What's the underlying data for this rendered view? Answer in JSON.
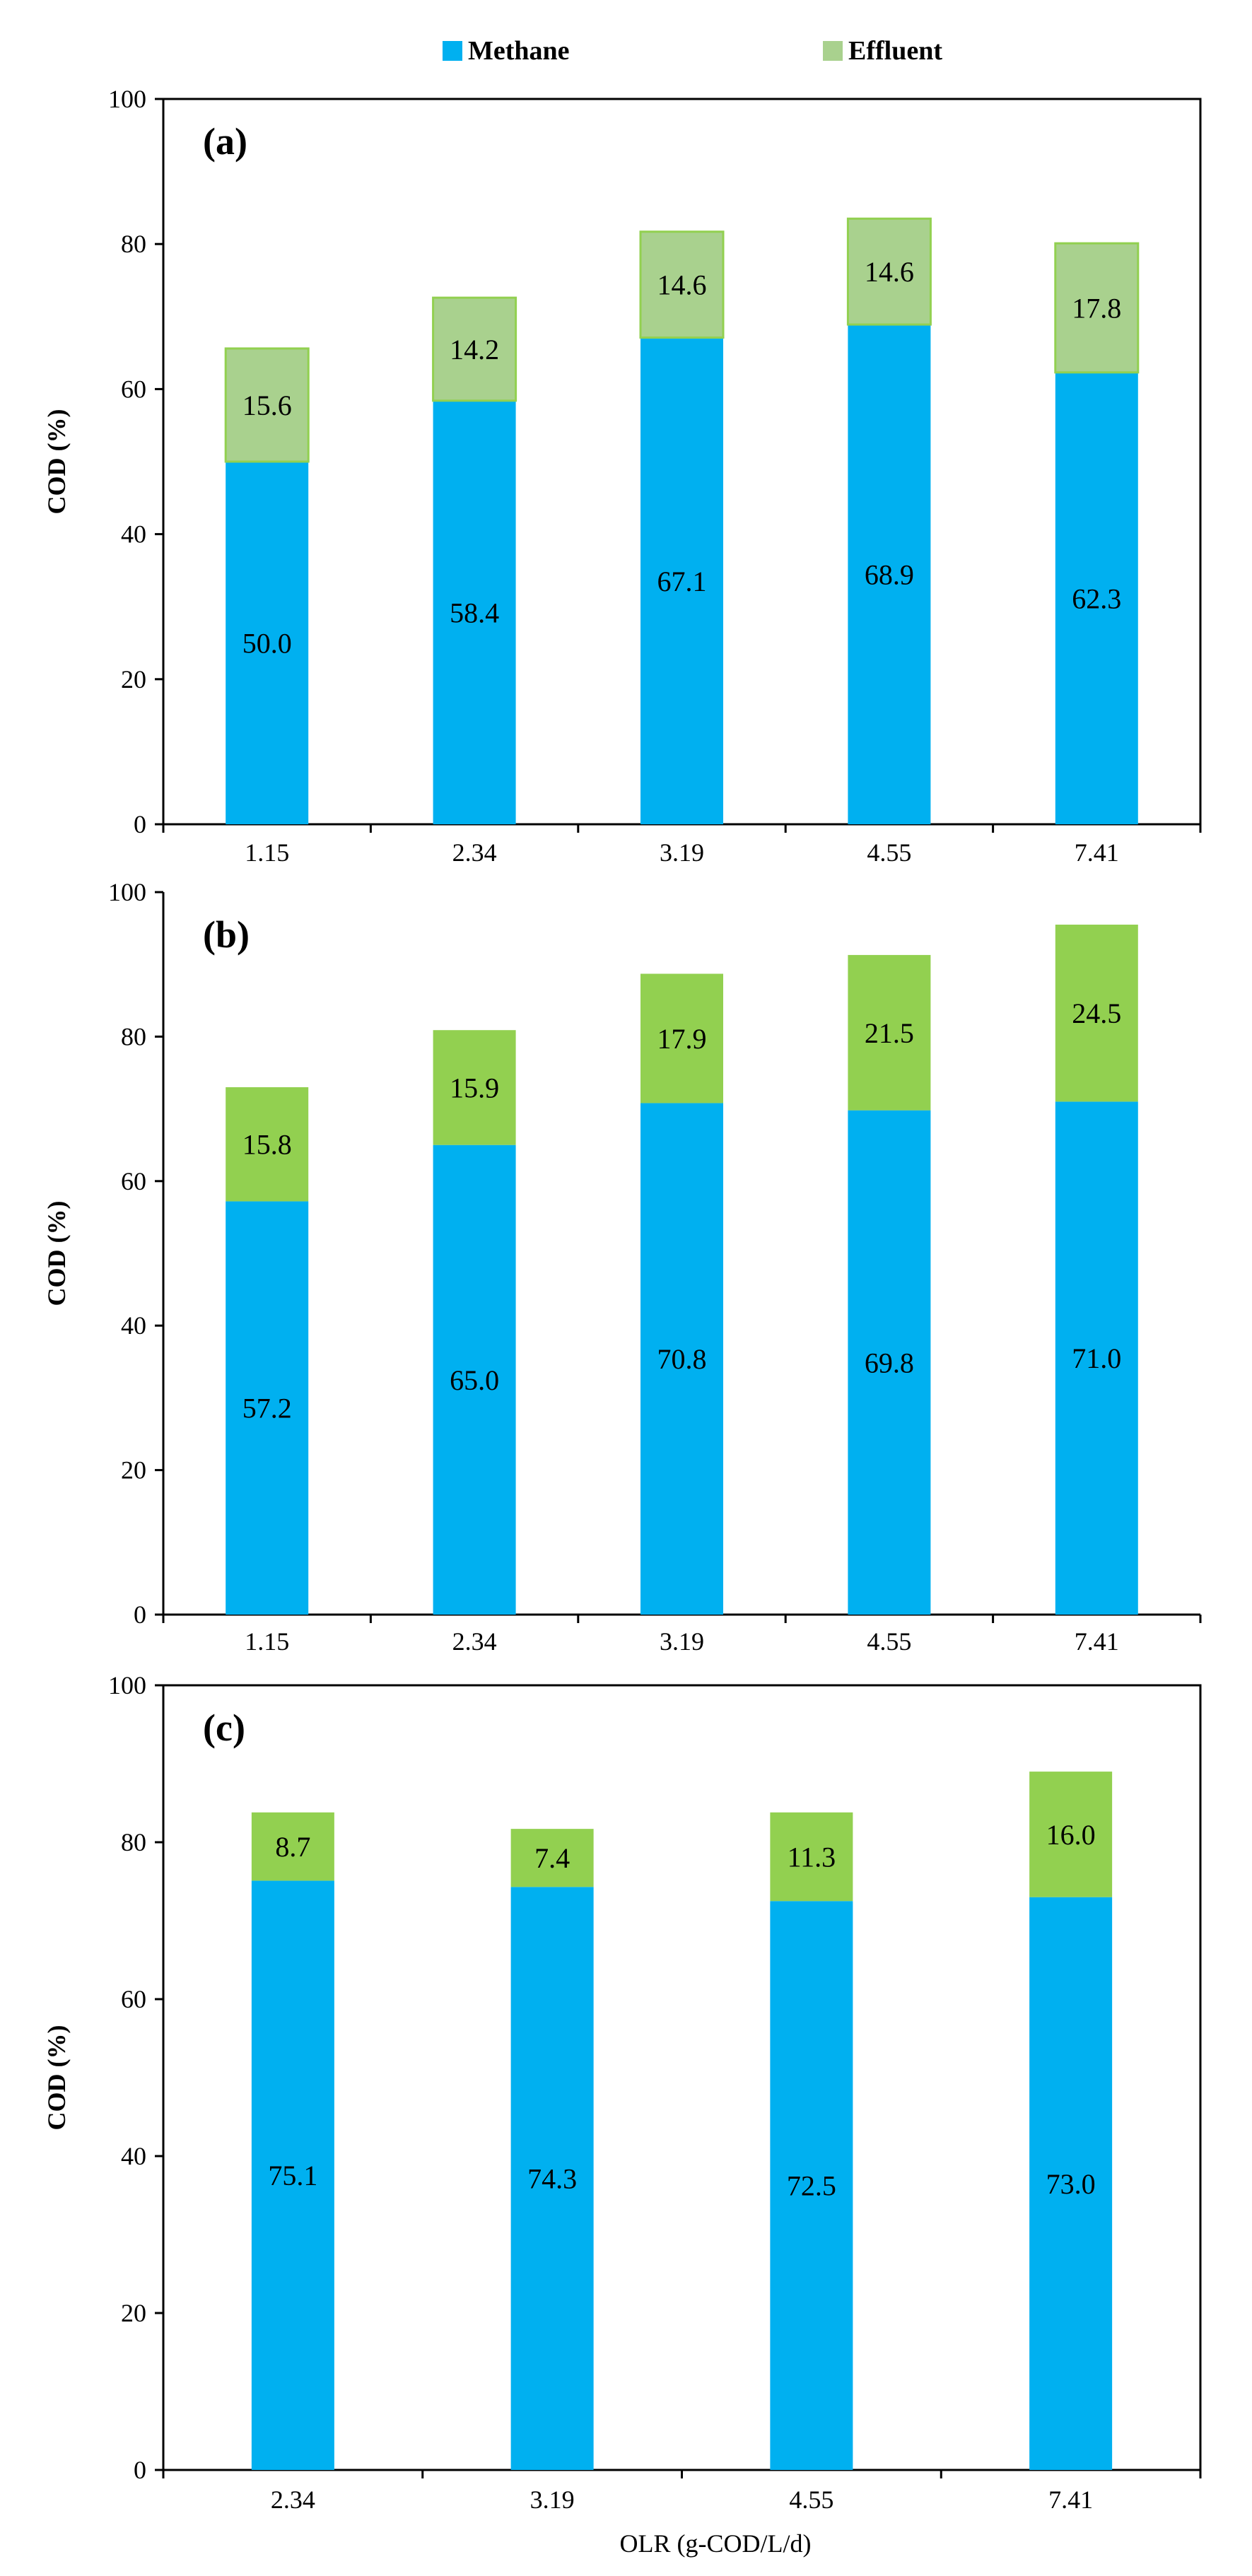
{
  "legend": {
    "methane_label": "Methane",
    "effluent_label": "Effluent"
  },
  "colors": {
    "methane": "#00b0f0",
    "effluent_a": "#a9d18e",
    "effluent_a_edge": "#92d050",
    "effluent_b": "#92d050",
    "effluent_c": "#92d050"
  },
  "x_axis_title": "OLR (g-COD/L/d)",
  "chart_data": [
    {
      "panel": "(a)",
      "type": "bar",
      "stacked": true,
      "ylabel": "COD (%)",
      "ylim": [
        0,
        100
      ],
      "yticks": [
        0,
        20,
        40,
        60,
        80,
        100
      ],
      "categories": [
        "1.15",
        "2.34",
        "3.19",
        "4.55",
        "7.41"
      ],
      "series": [
        {
          "name": "Methane",
          "values": [
            50.0,
            58.4,
            67.1,
            68.9,
            62.3
          ]
        },
        {
          "name": "Effluent",
          "values": [
            15.6,
            14.2,
            14.6,
            14.6,
            17.8
          ]
        }
      ]
    },
    {
      "panel": "(b)",
      "type": "bar",
      "stacked": true,
      "ylabel": "COD (%)",
      "ylim": [
        0,
        100
      ],
      "yticks": [
        0,
        20,
        40,
        60,
        80,
        100
      ],
      "categories": [
        "1.15",
        "2.34",
        "3.19",
        "4.55",
        "7.41"
      ],
      "series": [
        {
          "name": "Methane",
          "values": [
            57.2,
            65.0,
            70.8,
            69.8,
            71.0
          ]
        },
        {
          "name": "Effluent",
          "values": [
            15.8,
            15.9,
            17.9,
            21.5,
            24.5
          ]
        }
      ]
    },
    {
      "panel": "(c)",
      "type": "bar",
      "stacked": true,
      "ylabel": "COD (%)",
      "ylim": [
        0,
        100
      ],
      "yticks": [
        0,
        20,
        40,
        60,
        80,
        100
      ],
      "categories": [
        "2.34",
        "3.19",
        "4.55",
        "7.41"
      ],
      "xlabel": "OLR (g-COD/L/d)",
      "series": [
        {
          "name": "Methane",
          "values": [
            75.1,
            74.3,
            72.5,
            73.0
          ]
        },
        {
          "name": "Effluent",
          "values": [
            8.7,
            7.4,
            11.3,
            16.0
          ]
        }
      ]
    }
  ]
}
